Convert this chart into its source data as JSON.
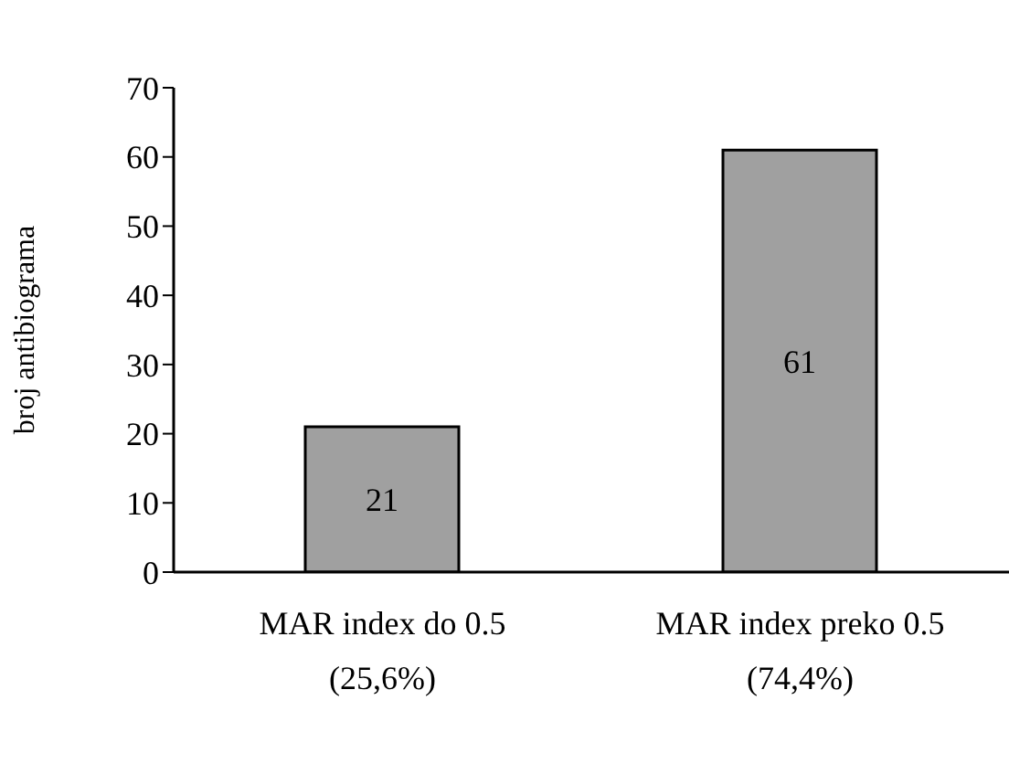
{
  "chart_data": {
    "type": "bar",
    "ylabel": "broj antibiograma",
    "categories": [
      "MAR index do 0.5\n(25,6%)",
      "MAR index preko 0.5\n(74,4%)"
    ],
    "values": [
      21,
      61
    ],
    "color": "#a0a0a0",
    "ylim": [
      0,
      70
    ],
    "yticks": [
      0,
      10,
      20,
      30,
      40,
      50,
      60,
      70
    ],
    "data_labels": true
  }
}
